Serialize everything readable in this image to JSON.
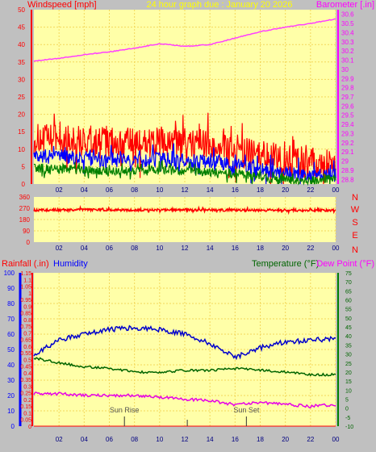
{
  "header": {
    "windspeed_label": "Windspeed [mph]",
    "graph_date": "24 hour graph due : January 20 2026",
    "barometer_label": "Barometer [.in]"
  },
  "lower_header": {
    "rainfall_label": "Rainfall (.in)",
    "humidity_label": "Humidity",
    "temperature_label": "Temperature (°F)",
    "dewpoint_label": "Dew Point (°F)"
  },
  "compass": [
    "N",
    "W",
    "S",
    "E",
    "N"
  ],
  "markers": {
    "sunrise": "Sun Rise",
    "sunset": "Sun Set"
  },
  "colors": {
    "background": "#c0c0c0",
    "plot_bg": "#ffffa8",
    "grid": "#f3d75a",
    "wind_gust": "#ff0000",
    "wind_avg": "#0000ff",
    "wind_low": "#008000",
    "barometer": "#ff40ff",
    "humidity": "#0000cc",
    "temperature": "#006400",
    "dewpoint": "#e600e6",
    "rainfall": "#ff0000"
  },
  "chart_data": [
    {
      "type": "line",
      "x_ticks": [
        "02",
        "04",
        "06",
        "08",
        "10",
        "12",
        "14",
        "16",
        "18",
        "20",
        "22",
        "00"
      ],
      "y_left_ticks": [
        "0",
        "5",
        "10",
        "15",
        "20",
        "25",
        "30",
        "35",
        "40",
        "45",
        "50"
      ],
      "y_left_range": [
        0,
        50
      ],
      "y_right_ticks": [
        "28.8",
        "28.9",
        "29",
        "29.1",
        "29.2",
        "29.3",
        "29.4",
        "29.5",
        "29.6",
        "29.7",
        "29.8",
        "29.9",
        "30",
        "30.1",
        "30.2",
        "30.3",
        "30.4",
        "30.5",
        "30.6"
      ],
      "y_right_range": [
        28.75,
        30.65
      ],
      "series": [
        {
          "name": "Windspeed gust",
          "axis": "left",
          "x": [
            0,
            4,
            8,
            10,
            14,
            16,
            18,
            20,
            22,
            24
          ],
          "y": [
            13,
            12.5,
            11.5,
            12,
            11.5,
            10,
            8,
            7,
            6,
            6
          ]
        },
        {
          "name": "Windspeed average",
          "axis": "left",
          "x": [
            0,
            4,
            8,
            10,
            14,
            16,
            18,
            20,
            22,
            24
          ],
          "y": [
            8,
            7.5,
            6.5,
            7,
            6.5,
            5.5,
            4,
            3,
            2.5,
            2.5
          ]
        },
        {
          "name": "Windspeed low",
          "axis": "left",
          "x": [
            0,
            4,
            8,
            10,
            14,
            16,
            18,
            20,
            22,
            24
          ],
          "y": [
            4.5,
            4,
            3.5,
            4,
            3.5,
            3,
            2,
            1,
            1,
            1.5
          ]
        },
        {
          "name": "Barometer",
          "axis": "right",
          "x": [
            0,
            2,
            4,
            6,
            8,
            10,
            12,
            14,
            16,
            18,
            20,
            22,
            24
          ],
          "y": [
            30.09,
            30.12,
            30.16,
            30.19,
            30.23,
            30.28,
            30.25,
            30.27,
            30.34,
            30.41,
            30.46,
            30.5,
            30.55
          ]
        }
      ]
    },
    {
      "type": "line",
      "x_ticks": [
        "02",
        "04",
        "06",
        "08",
        "10",
        "12",
        "14",
        "16",
        "18",
        "20",
        "22",
        "00"
      ],
      "y_ticks": [
        "0",
        "90",
        "180",
        "270",
        "360"
      ],
      "y_range": [
        0,
        360
      ],
      "series": [
        {
          "name": "Wind direction",
          "x": [
            0,
            4,
            8,
            12,
            16,
            20,
            22,
            24
          ],
          "y": [
            255,
            258,
            255,
            257,
            255,
            255,
            250,
            255
          ]
        }
      ]
    },
    {
      "type": "line",
      "x_ticks": [
        "02",
        "04",
        "06",
        "08",
        "10",
        "12",
        "14",
        "16",
        "18",
        "20",
        "22",
        "00"
      ],
      "y_left_outer_ticks": [
        "0",
        "10",
        "20",
        "30",
        "40",
        "50",
        "60",
        "70",
        "80",
        "90",
        "100"
      ],
      "y_left_outer_range": [
        0,
        100
      ],
      "y_left_inner_ticks": [
        "0",
        "0.05",
        "0.1",
        "0.15",
        "0.2",
        "0.25",
        "0.3",
        "0.35",
        "0.4",
        "0.45",
        "0.5",
        "0.55",
        "0.6",
        "0.65",
        "0.7",
        "0.75",
        "0.8",
        "0.85",
        "0.9",
        "0.95",
        "1",
        "1.05",
        "1.1",
        "1.15"
      ],
      "y_left_inner_range": [
        0,
        1.15
      ],
      "y_right_ticks": [
        "-10",
        "-5",
        "0",
        "5",
        "10",
        "15",
        "20",
        "25",
        "30",
        "35",
        "40",
        "45",
        "50",
        "55",
        "60",
        "65",
        "70",
        "75"
      ],
      "y_right_range": [
        -10,
        75
      ],
      "series": [
        {
          "name": "Humidity",
          "axis": "left_outer",
          "x": [
            0,
            2,
            4,
            6,
            8,
            10,
            12,
            14,
            16,
            18,
            20,
            22,
            24
          ],
          "y": [
            47,
            56,
            60,
            63,
            64,
            63,
            60,
            54,
            45,
            51,
            55,
            56,
            57
          ]
        },
        {
          "name": "Temperature",
          "axis": "right",
          "x": [
            0,
            2,
            4,
            6,
            8,
            10,
            12,
            14,
            16,
            18,
            20,
            22,
            24
          ],
          "y": [
            28,
            25,
            23,
            22,
            20,
            20,
            21,
            21,
            22,
            21,
            20,
            18.5,
            18.5
          ]
        },
        {
          "name": "Dew Point",
          "axis": "right",
          "x": [
            0,
            2,
            4,
            6,
            8,
            10,
            12,
            14,
            16,
            18,
            20,
            22,
            24
          ],
          "y": [
            8,
            8,
            7,
            7,
            7,
            6,
            5,
            4,
            2,
            3,
            2,
            1,
            2
          ]
        },
        {
          "name": "Rainfall",
          "axis": "left_inner",
          "x": [
            0,
            24
          ],
          "y": [
            0,
            0
          ]
        }
      ],
      "sunrise_hour": 7.2,
      "sunset_hour": 16.9
    }
  ]
}
